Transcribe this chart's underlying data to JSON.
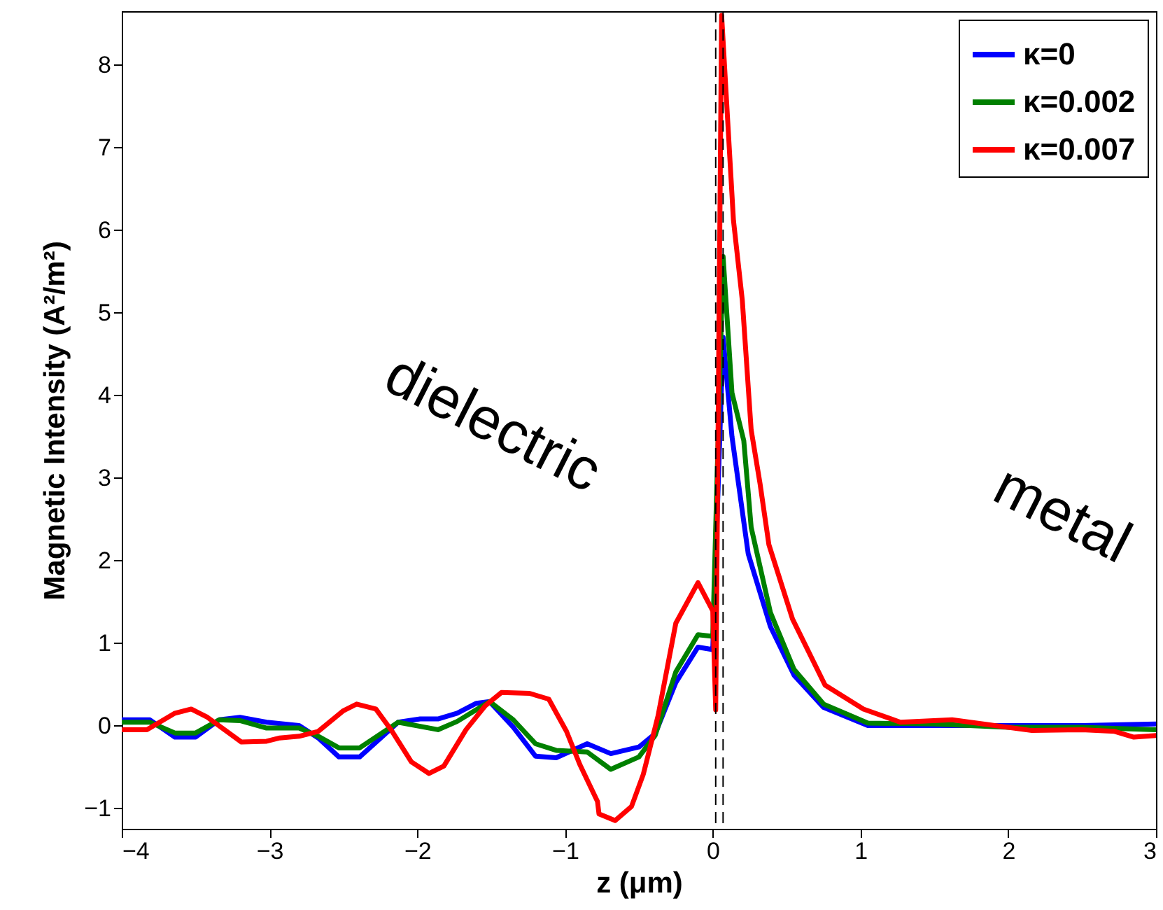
{
  "chart_data": {
    "type": "line",
    "xlabel": "z (μm)",
    "ylabel": "Magnetic Intensity (A²/m²)",
    "xlim": [
      -4,
      3
    ],
    "ylim": [
      -1.25,
      8.65
    ],
    "xticks": [
      -4,
      -3,
      -2,
      -1,
      0,
      1,
      2,
      3
    ],
    "yticks": [
      -1,
      0,
      1,
      2,
      3,
      4,
      5,
      6,
      7,
      8
    ],
    "grid": false,
    "legend": "top right",
    "line_style": "solid",
    "marker": "none",
    "series": [
      {
        "name": "κ=0",
        "color": "#0000ff",
        "x": [
          -4,
          -3.81,
          -3.64,
          -3.5,
          -3.34,
          -3.2,
          -3.02,
          -2.8,
          -2.67,
          -2.53,
          -2.39,
          -2.13,
          -1.98,
          -1.86,
          -1.73,
          -1.6,
          -1.51,
          -1.35,
          -1.2,
          -1.06,
          -0.85,
          -0.69,
          -0.5,
          -0.39,
          -0.25,
          -0.1,
          0.0,
          0.07,
          0.13,
          0.24,
          0.39,
          0.55,
          0.75,
          1.05,
          1.5,
          2.0,
          2.5,
          3.0
        ],
        "values": [
          0.07,
          0.07,
          -0.14,
          -0.14,
          0.07,
          0.1,
          0.04,
          0,
          -0.15,
          -0.38,
          -0.38,
          0.04,
          0.08,
          0.08,
          0.15,
          0.27,
          0.29,
          -0.02,
          -0.37,
          -0.39,
          -0.22,
          -0.34,
          -0.26,
          -0.1,
          0.52,
          0.95,
          0.92,
          4.7,
          3.5,
          2.08,
          1.2,
          0.61,
          0.22,
          0.0,
          0.0,
          0.0,
          0.0,
          0.02
        ]
      },
      {
        "name": "κ=0.002",
        "color": "#008000",
        "x": [
          -4,
          -3.81,
          -3.64,
          -3.5,
          -3.34,
          -3.2,
          -3.02,
          -2.8,
          -2.67,
          -2.53,
          -2.39,
          -2.13,
          -1.86,
          -1.73,
          -1.51,
          -1.35,
          -1.2,
          -1.06,
          -0.85,
          -0.69,
          -0.5,
          -0.39,
          -0.25,
          -0.1,
          0.0,
          0.07,
          0.13,
          0.21,
          0.26,
          0.39,
          0.55,
          0.75,
          1.05,
          1.5,
          2.0,
          2.5,
          3.0
        ],
        "values": [
          0.04,
          0.04,
          -0.09,
          -0.09,
          0.07,
          0.06,
          -0.03,
          -0.03,
          -0.13,
          -0.27,
          -0.27,
          0.04,
          -0.05,
          0.05,
          0.29,
          0.07,
          -0.22,
          -0.3,
          -0.32,
          -0.53,
          -0.38,
          -0.12,
          0.65,
          1.1,
          1.08,
          5.68,
          4.03,
          3.45,
          2.4,
          1.37,
          0.68,
          0.26,
          0.03,
          0.02,
          -0.02,
          -0.02,
          -0.05
        ]
      },
      {
        "name": "κ=0.007",
        "color": "#ff0000",
        "x": [
          -3.99,
          -3.83,
          -3.64,
          -3.53,
          -3.42,
          -3.19,
          -3.02,
          -2.93,
          -2.8,
          -2.67,
          -2.5,
          -2.41,
          -2.28,
          -2.17,
          -2.04,
          -1.92,
          -1.82,
          -1.67,
          -1.54,
          -1.43,
          -1.24,
          -1.11,
          -0.99,
          -0.9,
          -0.78,
          -0.77,
          -0.66,
          -0.55,
          -0.47,
          -0.37,
          -0.25,
          -0.1,
          0.0,
          0.02,
          0.06,
          0.14,
          0.2,
          0.26,
          0.32,
          0.38,
          0.54,
          0.76,
          1.02,
          1.27,
          1.62,
          1.83,
          2.16,
          2.5,
          2.72,
          2.85,
          3.0
        ],
        "values": [
          -0.05,
          -0.05,
          0.15,
          0.2,
          0.1,
          -0.2,
          -0.19,
          -0.15,
          -0.13,
          -0.07,
          0.18,
          0.26,
          0.2,
          -0.07,
          -0.44,
          -0.58,
          -0.49,
          -0.05,
          0.24,
          0.4,
          0.39,
          0.32,
          -0.07,
          -0.47,
          -0.92,
          -1.07,
          -1.15,
          -0.98,
          -0.59,
          0.12,
          1.24,
          1.73,
          1.39,
          0.19,
          8.6,
          6.12,
          5.15,
          3.58,
          2.93,
          2.19,
          1.29,
          0.49,
          0.2,
          0.04,
          0.07,
          0.02,
          -0.06,
          -0.05,
          -0.07,
          -0.14,
          -0.12
        ]
      }
    ],
    "ref_lines": [
      {
        "axis": "x",
        "value": 0.02,
        "color": "#000000",
        "line_style": "dashed"
      },
      {
        "axis": "x",
        "value": 0.07,
        "color": "#000000",
        "line_style": "dashed"
      }
    ],
    "annotations": [
      "dielectric",
      "metal"
    ]
  }
}
